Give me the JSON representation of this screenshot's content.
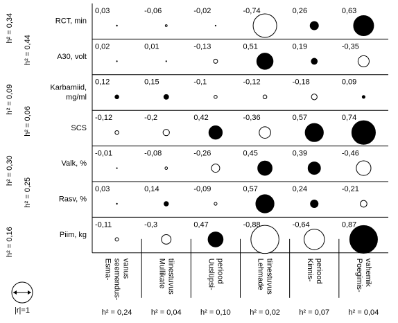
{
  "chart_data": {
    "type": "correlation-matrix",
    "rows": [
      [
        "RCT, min"
      ],
      [
        "A30, volt"
      ],
      [
        "Karbamiid,",
        "mg/ml"
      ],
      [
        "SCS"
      ],
      [
        "Valk, %"
      ],
      [
        "Rasv, %"
      ],
      [
        "Piim, kg"
      ]
    ],
    "row_h2": [
      "h² = 0,34",
      "h² = 0,44",
      "h² = 0,09",
      "h² = 0,06",
      "h² = 0,30",
      "h² = 0,25",
      "h² = 0,16"
    ],
    "columns": [
      [
        "Esma-",
        "seemendus-",
        "vanus"
      ],
      [
        "Mullikate",
        "tiinestuvus"
      ],
      [
        "Uuslüpsi-",
        "periood"
      ],
      [
        "Lehmade",
        "tiinestuvus"
      ],
      [
        "Kinnis-",
        "periood"
      ],
      [
        "Poegimis-",
        "vahemik"
      ]
    ],
    "column_h2": [
      "h² = 0,24",
      "h² = 0,04",
      "h² = 0,10",
      "h² = 0,02",
      "h² = 0,07",
      "h² = 0,04"
    ],
    "values": [
      [
        0.03,
        -0.06,
        -0.02,
        -0.74,
        0.26,
        0.63
      ],
      [
        0.02,
        0.01,
        -0.13,
        0.51,
        0.19,
        -0.35
      ],
      [
        0.12,
        0.15,
        -0.1,
        -0.12,
        -0.18,
        0.09
      ],
      [
        -0.12,
        -0.2,
        0.42,
        -0.36,
        0.57,
        0.74
      ],
      [
        -0.01,
        -0.08,
        -0.26,
        0.45,
        0.39,
        -0.46
      ],
      [
        0.03,
        0.14,
        -0.09,
        0.57,
        0.24,
        -0.21
      ],
      [
        -0.11,
        -0.3,
        0.47,
        -0.88,
        -0.64,
        0.87
      ]
    ],
    "value_labels": [
      [
        "0,03",
        "-0,06",
        "-0,02",
        "-0,74",
        "0,26",
        "0,63"
      ],
      [
        "0,02",
        "0,01",
        "-0,13",
        "0,51",
        "0,19",
        "-0,35"
      ],
      [
        "0,12",
        "0,15",
        "-0,1",
        "-0,12",
        "-0,18",
        "0,09"
      ],
      [
        "-0,12",
        "-0,2",
        "0,42",
        "-0,36",
        "0,57",
        "0,74"
      ],
      [
        "-0,01",
        "-0,08",
        "-0,26",
        "0,45",
        "0,39",
        "-0,46"
      ],
      [
        "0,03",
        "0,14",
        "-0,09",
        "0,57",
        "0,24",
        "-0,21"
      ],
      [
        "-0,11",
        "-0,3",
        "0,47",
        "-0,88",
        "-0,64",
        "0,87"
      ]
    ],
    "legend": "|r|=1"
  }
}
